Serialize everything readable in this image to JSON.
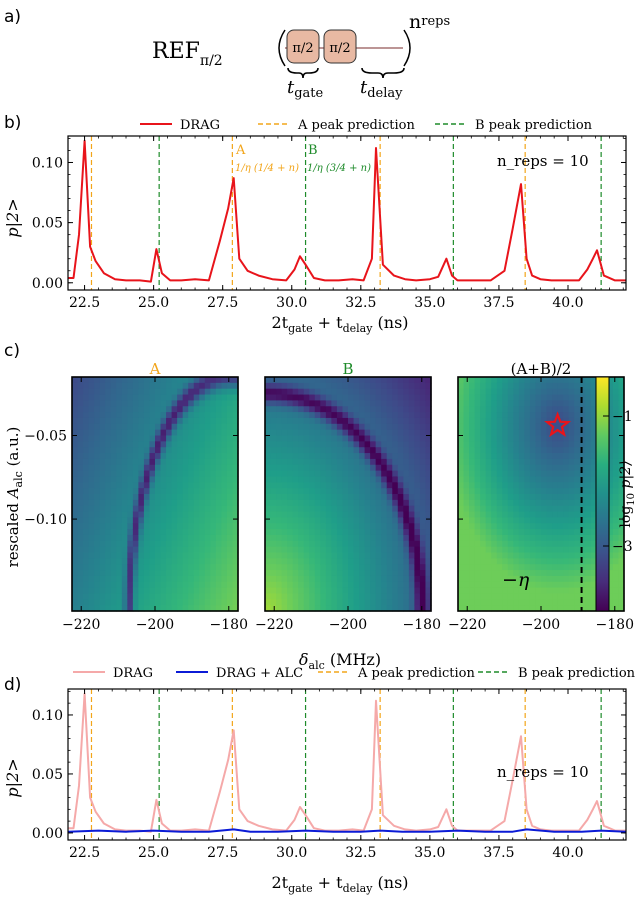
{
  "panel_labels": {
    "a": "a)",
    "b": "b)",
    "c": "c)",
    "d": "d)"
  },
  "sequence": {
    "ref": "REF",
    "ref_sub": "π/2",
    "pulse1": "π/2",
    "pulse2": "π/2",
    "exponent": "n",
    "exponent_sub": "reps",
    "t_gate": "t",
    "t_gate_sub": "gate",
    "t_delay": "t",
    "t_delay_sub": "delay"
  },
  "colors": {
    "drag": "#e8141b",
    "drag_light": "#f5a9a9",
    "drag_alc": "#0b1bd6",
    "peak_a": "#f2a51a",
    "peak_b": "#1e8b2a",
    "star": "#e8141b"
  },
  "chart_data": [
    {
      "id": "b",
      "type": "line",
      "legend": [
        "DRAG",
        "A peak prediction",
        "B peak prediction"
      ],
      "legend_position": "top",
      "xlabel": "2t_gate + t_delay (ns)",
      "xlabel_main": "2t",
      "xlabel_sub1": "gate",
      "xlabel_mid": " + t",
      "xlabel_sub2": "delay",
      "xlabel_unit": " (ns)",
      "ylabel": "p|2>",
      "xlim": [
        21.9,
        42.1
      ],
      "ylim": [
        -0.006,
        0.122
      ],
      "xticks": [
        "22.5",
        "25.0",
        "27.5",
        "30.0",
        "32.5",
        "35.0",
        "37.5",
        "40.0"
      ],
      "xtick_values": [
        22.5,
        25.0,
        27.5,
        30.0,
        32.5,
        35.0,
        37.5,
        40.0
      ],
      "yticks": [
        "0.00",
        "0.05",
        "0.10"
      ],
      "ytick_values": [
        0.0,
        0.05,
        0.1
      ],
      "a_peaks": [
        22.75,
        27.85,
        33.2,
        38.45
      ],
      "b_peaks": [
        25.2,
        30.5,
        35.85,
        41.2
      ],
      "annotation_a": "A",
      "annotation_a_formula": "1/η (1/4 + n)",
      "annotation_b": "B",
      "annotation_b_formula": "1/η (3/4 + n)",
      "nreps_label": "n_reps = 10",
      "series": [
        {
          "name": "DRAG",
          "x": [
            21.9,
            22.1,
            22.3,
            22.5,
            22.7,
            22.9,
            23.2,
            23.6,
            24.0,
            24.5,
            24.9,
            25.1,
            25.3,
            25.6,
            26.0,
            26.5,
            27.0,
            27.4,
            27.7,
            27.9,
            28.1,
            28.4,
            28.8,
            29.3,
            29.8,
            30.1,
            30.3,
            30.5,
            30.8,
            31.2,
            31.7,
            32.2,
            32.6,
            32.9,
            33.05,
            33.3,
            33.7,
            34.1,
            34.5,
            35.0,
            35.3,
            35.6,
            35.8,
            36.0,
            36.4,
            36.8,
            37.2,
            37.7,
            38.0,
            38.3,
            38.5,
            38.7,
            39.0,
            39.4,
            39.9,
            40.4,
            40.7,
            40.9,
            41.05,
            41.3,
            41.7,
            42.1
          ],
          "y": [
            0.004,
            0.004,
            0.04,
            0.118,
            0.03,
            0.018,
            0.008,
            0.003,
            0.002,
            0.002,
            0.001,
            0.028,
            0.008,
            0.002,
            0.002,
            0.003,
            0.002,
            0.035,
            0.062,
            0.087,
            0.02,
            0.01,
            0.006,
            0.003,
            0.002,
            0.011,
            0.022,
            0.015,
            0.004,
            0.002,
            0.002,
            0.003,
            0.002,
            0.02,
            0.112,
            0.015,
            0.006,
            0.003,
            0.002,
            0.003,
            0.005,
            0.02,
            0.006,
            0.002,
            0.002,
            0.002,
            0.002,
            0.01,
            0.045,
            0.082,
            0.02,
            0.006,
            0.003,
            0.002,
            0.002,
            0.002,
            0.011,
            0.02,
            0.027,
            0.006,
            0.002,
            0.002
          ]
        }
      ]
    },
    {
      "id": "c",
      "type": "heatmap",
      "titles": [
        "A",
        "B",
        "(A+B)/2"
      ],
      "xlabel": "δ_alc (MHz)",
      "xlabel_main": "δ",
      "xlabel_sub": "alc",
      "xlabel_unit": " (MHz)",
      "ylabel": "rescaled A_alc (a.u.)",
      "ylabel_main": "rescaled ",
      "ylabel_var": "A",
      "ylabel_sub": "alc",
      "ylabel_unit": " (a.u.)",
      "xlim": [
        -222.5,
        -177.5
      ],
      "ylim": [
        -0.155,
        -0.015
      ],
      "xticks": [
        "−220",
        "−200",
        "−180"
      ],
      "xtick_values": [
        -220,
        -200,
        -180
      ],
      "yticks": [
        "−0.05",
        "−0.10"
      ],
      "ytick_values": [
        -0.05,
        -0.1
      ],
      "colorbar_label": "log10 p|2⟩",
      "colorbar_label_main": "log",
      "colorbar_label_sub": "10",
      "colorbar_label_var": " p|2⟩",
      "colorbar_ticks": [
        "−1",
        "−3"
      ],
      "colorbar_tick_values": [
        -1,
        -3
      ],
      "colorbar_range": [
        -4,
        -0.4
      ],
      "eta_label": "−η",
      "eta_x": -189,
      "star": {
        "x": -195.5,
        "y": -0.044
      }
    },
    {
      "id": "d",
      "type": "line",
      "legend": [
        "DRAG",
        "DRAG + ALC",
        "A peak prediction",
        "B peak prediction"
      ],
      "legend_position": "top",
      "xlabel": "2t_gate + t_delay (ns)",
      "xlabel_main": "2t",
      "xlabel_sub1": "gate",
      "xlabel_mid": " + t",
      "xlabel_sub2": "delay",
      "xlabel_unit": " (ns)",
      "ylabel": "p|2>",
      "xlim": [
        21.9,
        42.1
      ],
      "ylim": [
        -0.006,
        0.122
      ],
      "xticks": [
        "22.5",
        "25.0",
        "27.5",
        "30.0",
        "32.5",
        "35.0",
        "37.5",
        "40.0"
      ],
      "xtick_values": [
        22.5,
        25.0,
        27.5,
        30.0,
        32.5,
        35.0,
        37.5,
        40.0
      ],
      "yticks": [
        "0.00",
        "0.05",
        "0.10"
      ],
      "ytick_values": [
        0.0,
        0.05,
        0.1
      ],
      "a_peaks": [
        22.75,
        27.85,
        33.2,
        38.45
      ],
      "b_peaks": [
        25.2,
        30.5,
        35.85,
        41.2
      ],
      "nreps_label": "n_reps = 10",
      "series": [
        {
          "name": "DRAG",
          "x": [
            21.9,
            22.1,
            22.3,
            22.5,
            22.7,
            22.9,
            23.2,
            23.6,
            24.0,
            24.5,
            24.9,
            25.1,
            25.3,
            25.6,
            26.0,
            26.5,
            27.0,
            27.4,
            27.7,
            27.9,
            28.1,
            28.4,
            28.8,
            29.3,
            29.8,
            30.1,
            30.3,
            30.5,
            30.8,
            31.2,
            31.7,
            32.2,
            32.6,
            32.9,
            33.05,
            33.3,
            33.7,
            34.1,
            34.5,
            35.0,
            35.3,
            35.6,
            35.8,
            36.0,
            36.4,
            36.8,
            37.2,
            37.7,
            38.0,
            38.3,
            38.5,
            38.7,
            39.0,
            39.4,
            39.9,
            40.4,
            40.7,
            40.9,
            41.05,
            41.3,
            41.7,
            42.1
          ],
          "y": [
            0.004,
            0.004,
            0.04,
            0.118,
            0.03,
            0.018,
            0.008,
            0.003,
            0.002,
            0.002,
            0.001,
            0.028,
            0.008,
            0.002,
            0.002,
            0.003,
            0.002,
            0.035,
            0.062,
            0.087,
            0.02,
            0.01,
            0.006,
            0.003,
            0.002,
            0.011,
            0.022,
            0.015,
            0.004,
            0.002,
            0.002,
            0.003,
            0.002,
            0.02,
            0.112,
            0.015,
            0.006,
            0.003,
            0.002,
            0.003,
            0.005,
            0.02,
            0.006,
            0.002,
            0.002,
            0.002,
            0.002,
            0.01,
            0.045,
            0.082,
            0.02,
            0.006,
            0.003,
            0.002,
            0.002,
            0.002,
            0.011,
            0.02,
            0.027,
            0.006,
            0.002,
            0.002
          ]
        },
        {
          "name": "DRAG + ALC",
          "x": [
            21.9,
            23.0,
            24.0,
            25.0,
            26.0,
            27.0,
            27.9,
            28.5,
            29.5,
            30.5,
            31.5,
            32.5,
            33.2,
            34.0,
            35.0,
            36.0,
            37.0,
            38.0,
            38.5,
            39.5,
            40.5,
            41.2,
            42.1
          ],
          "y": [
            0.001,
            0.002,
            0.001,
            0.002,
            0.001,
            0.001,
            0.003,
            0.001,
            0.001,
            0.002,
            0.001,
            0.001,
            0.002,
            0.001,
            0.001,
            0.002,
            0.001,
            0.001,
            0.003,
            0.001,
            0.001,
            0.002,
            0.001
          ]
        }
      ]
    }
  ]
}
